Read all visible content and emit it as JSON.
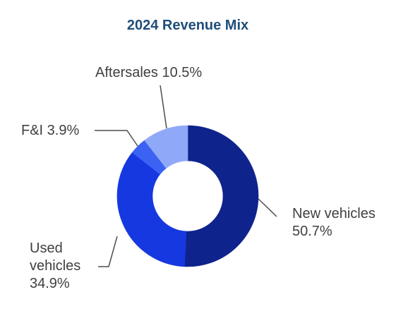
{
  "chart_data": {
    "type": "pie",
    "variant": "donut",
    "title": "2024 Revenue Mix",
    "start_angle_deg": 0,
    "direction": "clockwise",
    "slices": [
      {
        "label": "New vehicles",
        "value": 50.7,
        "value_label": "50.7%",
        "color": "#0f238c",
        "label_lines": [
          "New vehicles",
          "50.7%"
        ]
      },
      {
        "label": "Used vehicles",
        "value": 34.9,
        "value_label": "34.9%",
        "color": "#1538e0",
        "label_lines": [
          "Used",
          "vehicles",
          "34.9%"
        ]
      },
      {
        "label": "F&I",
        "value": 3.9,
        "value_label": "3.9%",
        "color": "#3b62f2",
        "label_lines": [
          "F&I 3.9%"
        ]
      },
      {
        "label": "Aftersales",
        "value": 10.5,
        "value_label": "10.5%",
        "color": "#8fa8f8",
        "label_lines": [
          "Aftersales 10.5%"
        ]
      }
    ],
    "legend": "none",
    "label_style": "outside labels with leader lines"
  }
}
